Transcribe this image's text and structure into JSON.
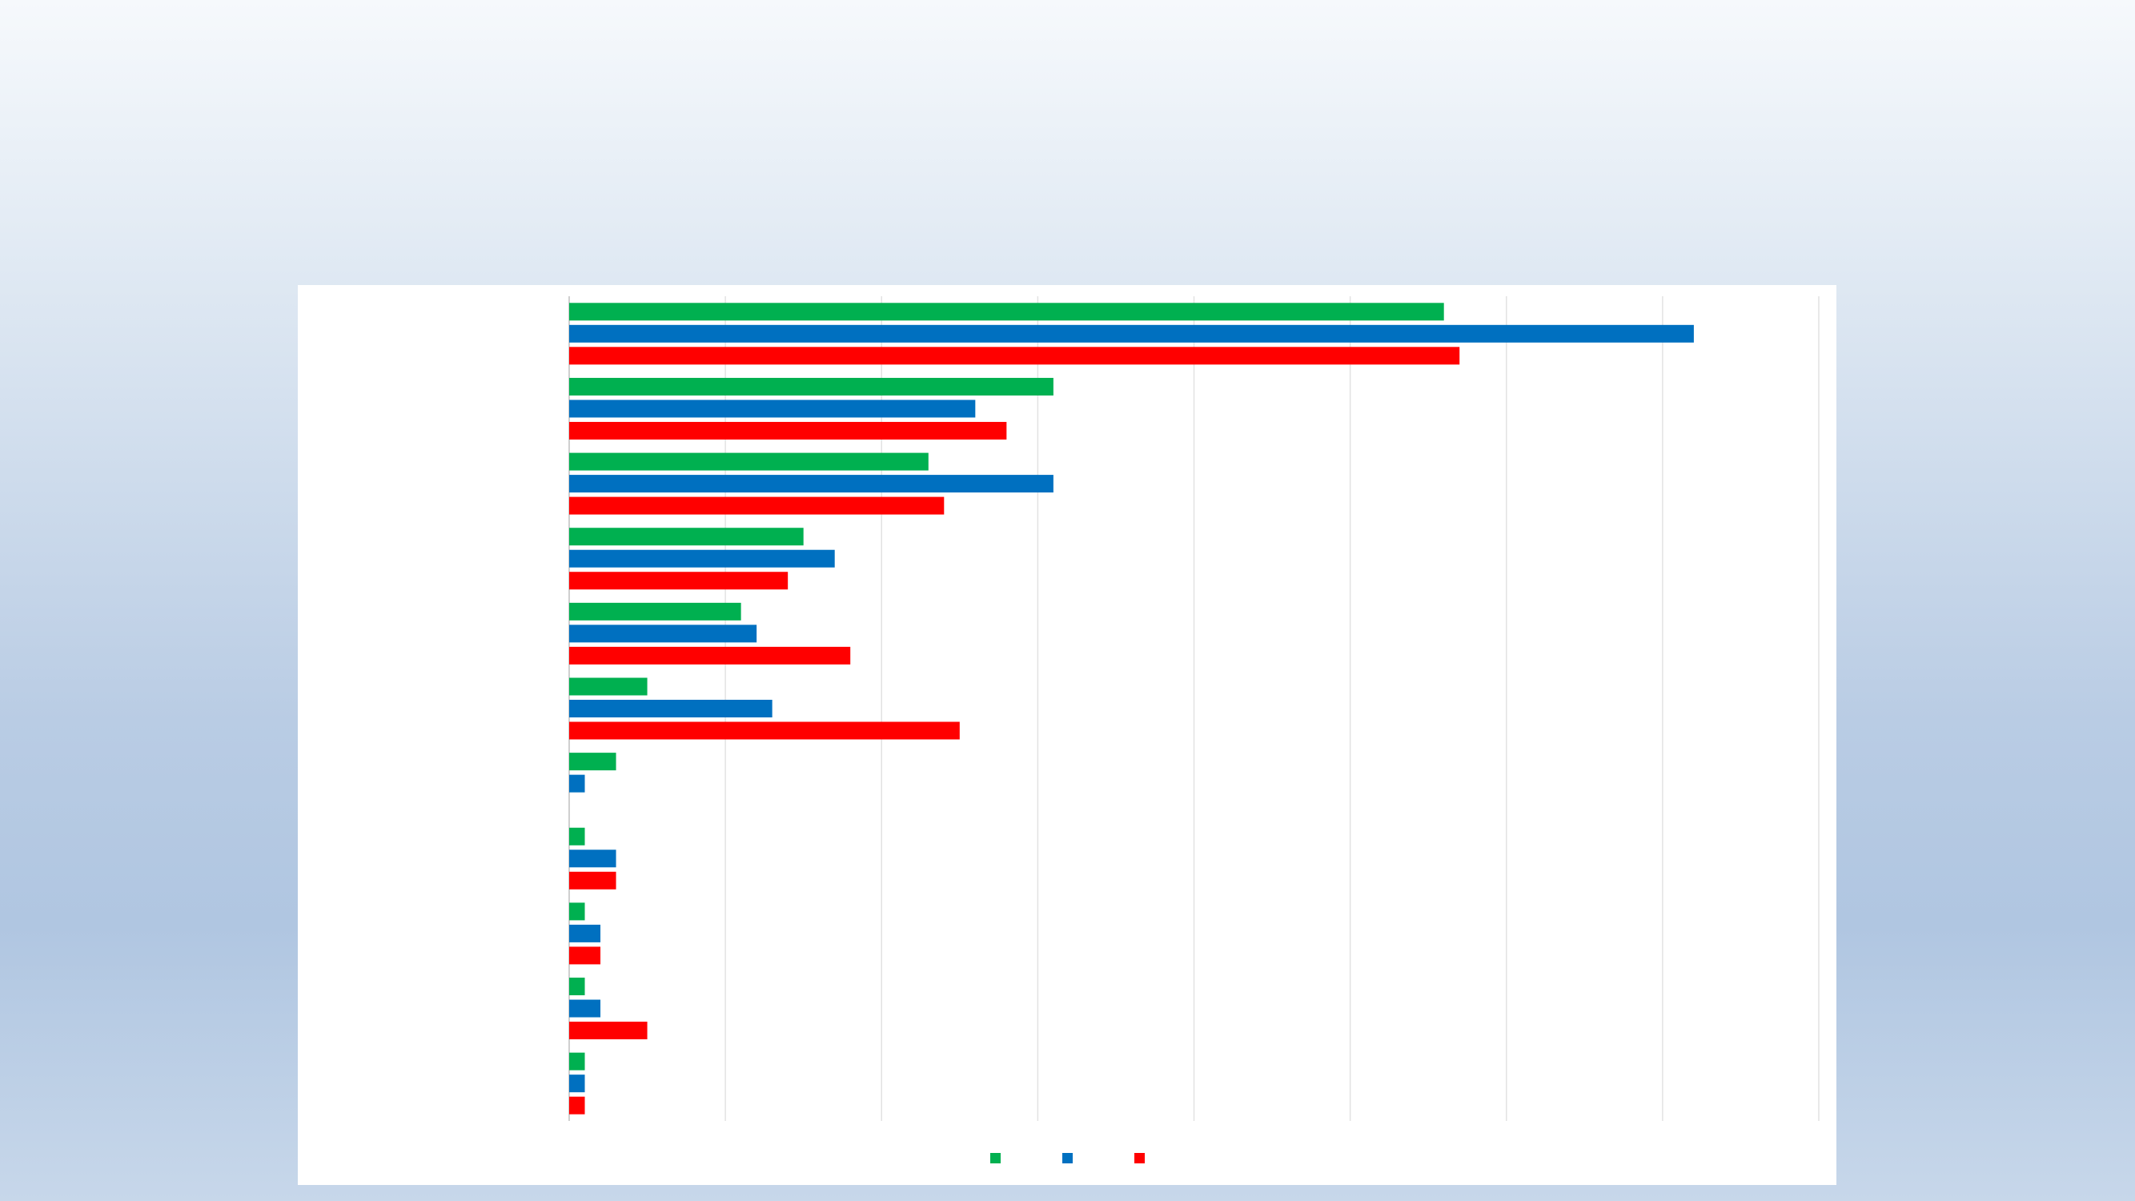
{
  "chart_data": {
    "type": "bar",
    "orientation": "horizontal",
    "categories": [
      "",
      "",
      "",
      "",
      "",
      "",
      "",
      "",
      "",
      "",
      ""
    ],
    "xlim": [
      0,
      80
    ],
    "grid": true,
    "legend_position": "bottom",
    "series": [
      {
        "color": "#00b050",
        "values": [
          56,
          31,
          23,
          15,
          11,
          5,
          3,
          1,
          1,
          1,
          1
        ]
      },
      {
        "color": "#0070c0",
        "values": [
          72,
          26,
          31,
          17,
          12,
          13,
          1,
          3,
          2,
          2,
          1
        ]
      },
      {
        "color": "#ff0000",
        "values": [
          57,
          28,
          24,
          14,
          18,
          25,
          0,
          3,
          2,
          5,
          1
        ]
      }
    ]
  }
}
